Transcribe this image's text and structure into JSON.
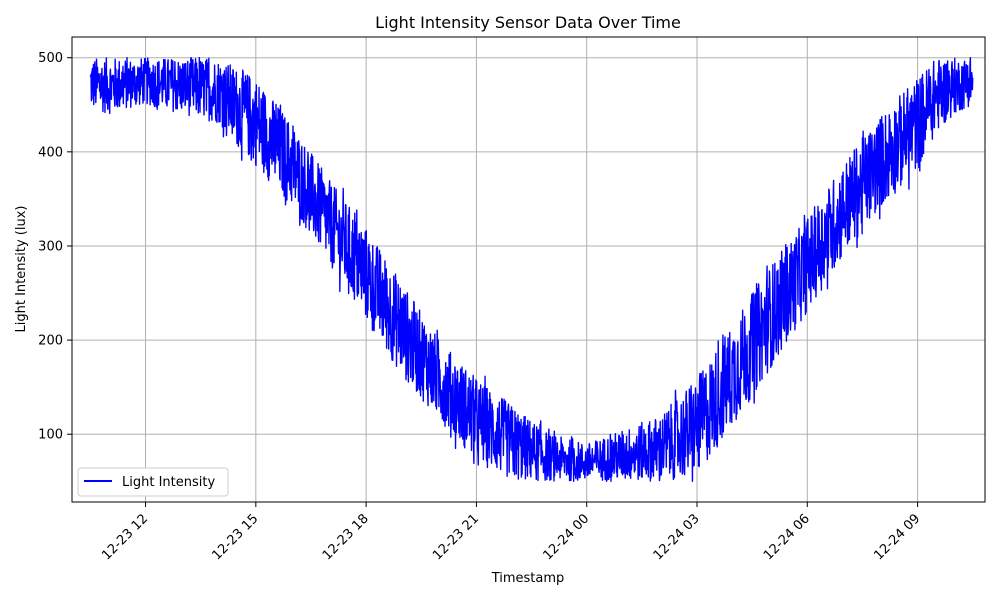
{
  "chart_data": {
    "type": "line",
    "title": "Light Intensity Sensor Data Over Time",
    "xlabel": "Timestamp",
    "ylabel": "Light Intensity (lux)",
    "x_range": [
      "2023-12-23 10:00",
      "2023-12-24 10:50"
    ],
    "ylim": [
      28,
      522
    ],
    "x_ticks": [
      {
        "t": "2023-12-23 12:00",
        "label": "12-23 12"
      },
      {
        "t": "2023-12-23 15:00",
        "label": "12-23 15"
      },
      {
        "t": "2023-12-23 18:00",
        "label": "12-23 18"
      },
      {
        "t": "2023-12-23 21:00",
        "label": "12-23 21"
      },
      {
        "t": "2023-12-24 00:00",
        "label": "12-24 00"
      },
      {
        "t": "2023-12-24 03:00",
        "label": "12-24 03"
      },
      {
        "t": "2023-12-24 06:00",
        "label": "12-24 06"
      },
      {
        "t": "2023-12-24 09:00",
        "label": "12-24 09"
      }
    ],
    "y_ticks": [
      100,
      200,
      300,
      400,
      500
    ],
    "grid": true,
    "legend_position": "lower-left",
    "series": [
      {
        "name": "Light Intensity",
        "color": "#0000ff",
        "x_start": "2023-12-23 10:30",
        "x_end": "2023-12-24 10:30",
        "envelope": {
          "x": [
            "2023-12-23 10:30",
            "2023-12-23 11:00",
            "2023-12-23 12:00",
            "2023-12-23 13:00",
            "2023-12-23 14:00",
            "2023-12-23 14:30",
            "2023-12-23 15:00",
            "2023-12-23 16:00",
            "2023-12-23 17:00",
            "2023-12-23 18:00",
            "2023-12-23 19:00",
            "2023-12-23 20:00",
            "2023-12-23 21:00",
            "2023-12-23 22:00",
            "2023-12-23 23:00",
            "2023-12-24 00:00",
            "2023-12-24 01:00",
            "2023-12-24 02:00",
            "2023-12-24 03:00",
            "2023-12-24 04:00",
            "2023-12-24 05:00",
            "2023-12-24 06:00",
            "2023-12-24 07:00",
            "2023-12-24 08:00",
            "2023-12-24 09:00",
            "2023-12-24 09:30",
            "2023-12-24 10:00",
            "2023-12-24 10:30"
          ],
          "upper": [
            500,
            500,
            500,
            500,
            500,
            490,
            480,
            430,
            370,
            320,
            260,
            200,
            160,
            130,
            100,
            90,
            105,
            120,
            160,
            220,
            280,
            330,
            390,
            440,
            480,
            500,
            500,
            500
          ],
          "lower": [
            445,
            440,
            450,
            440,
            430,
            405,
            385,
            340,
            280,
            220,
            160,
            115,
            70,
            50,
            50,
            50,
            50,
            50,
            55,
            110,
            170,
            230,
            290,
            340,
            380,
            420,
            440,
            450
          ]
        }
      }
    ]
  }
}
